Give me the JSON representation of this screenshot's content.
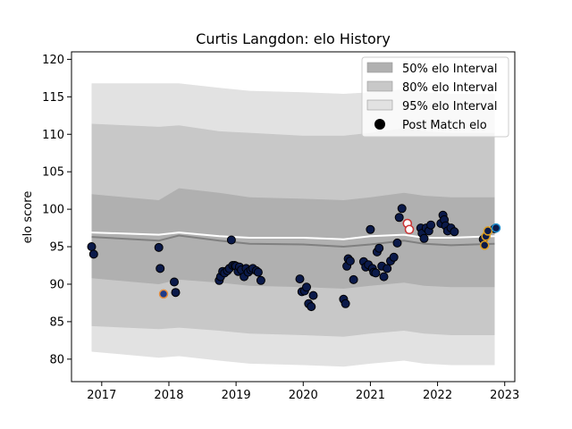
{
  "chart_data": {
    "type": "line",
    "title": "Curtis Langdon: elo History",
    "xlabel": "",
    "ylabel": "elo score",
    "xlim": [
      2016.55,
      2023.15
    ],
    "ylim": [
      77,
      121
    ],
    "x_ticks": [
      2017,
      2018,
      2019,
      2020,
      2021,
      2022,
      2023
    ],
    "x_tick_labels": [
      "2017",
      "2018",
      "2019",
      "2020",
      "2021",
      "2022",
      "2023"
    ],
    "y_ticks": [
      80,
      85,
      90,
      95,
      100,
      105,
      110,
      115,
      120
    ],
    "y_tick_labels": [
      "80",
      "85",
      "90",
      "95",
      "100",
      "105",
      "110",
      "115",
      "120"
    ],
    "grid": false,
    "legend_position": "top-right",
    "legend": [
      {
        "label": "50% elo Interval",
        "kind": "band",
        "color": "#b0b0b0"
      },
      {
        "label": "80% elo Interval",
        "kind": "band",
        "color": "#c8c8c8"
      },
      {
        "label": "95% elo Interval",
        "kind": "band",
        "color": "#e2e2e2"
      },
      {
        "label": "Post Match elo",
        "kind": "marker",
        "color": "#000000"
      }
    ],
    "colors": {
      "band50": "#b0b0b0",
      "band80": "#c8c8c8",
      "band95": "#e2e2e2",
      "mean_line": "#ffffff",
      "median_line": "#808080",
      "marker_fill": "#0b1a4a",
      "marker_edge": "#000000"
    },
    "bands": {
      "x": [
        2016.85,
        2017.85,
        2018.15,
        2018.75,
        2019.2,
        2020.0,
        2020.6,
        2021.0,
        2021.5,
        2021.8,
        2022.2,
        2022.85
      ],
      "p95_upper": [
        116.8,
        116.8,
        116.8,
        116.2,
        115.8,
        115.6,
        115.4,
        115.6,
        116.0,
        115.6,
        115.4,
        115.4
      ],
      "p80_upper": [
        111.4,
        111.0,
        111.2,
        110.4,
        110.2,
        109.8,
        109.8,
        110.2,
        110.8,
        110.4,
        110.2,
        110.2
      ],
      "p50_upper": [
        102.0,
        101.2,
        102.8,
        102.2,
        101.6,
        101.4,
        101.2,
        101.6,
        102.2,
        101.8,
        101.6,
        101.6
      ],
      "p50_lower": [
        90.8,
        90.0,
        90.6,
        90.2,
        89.8,
        89.6,
        89.4,
        89.8,
        90.2,
        89.8,
        89.6,
        89.6
      ],
      "p80_lower": [
        84.4,
        84.0,
        84.2,
        83.8,
        83.4,
        83.2,
        83.0,
        83.4,
        83.8,
        83.4,
        83.2,
        83.2
      ],
      "p95_lower": [
        81.0,
        80.2,
        80.4,
        79.8,
        79.4,
        79.2,
        79.0,
        79.4,
        79.8,
        79.4,
        79.2,
        79.2
      ],
      "mean": [
        96.9,
        96.6,
        96.9,
        96.4,
        96.2,
        96.2,
        96.0,
        96.4,
        96.6,
        96.2,
        96.2,
        96.4
      ],
      "median": [
        96.3,
        95.8,
        96.5,
        95.8,
        95.4,
        95.3,
        95.0,
        95.3,
        95.8,
        95.4,
        95.2,
        95.4
      ]
    },
    "series": [
      {
        "name": "Post Match elo",
        "x": [
          2016.85,
          2016.88,
          2017.85,
          2017.87,
          2017.92,
          2018.08,
          2018.1,
          2018.75,
          2018.77,
          2018.8,
          2018.83,
          2018.87,
          2018.9,
          2018.93,
          2018.95,
          2018.98,
          2019.0,
          2019.03,
          2019.05,
          2019.08,
          2019.12,
          2019.15,
          2019.18,
          2019.22,
          2019.25,
          2019.3,
          2019.33,
          2019.37,
          2019.95,
          2019.98,
          2020.02,
          2020.05,
          2020.08,
          2020.12,
          2020.15,
          2020.6,
          2020.63,
          2020.65,
          2020.67,
          2020.7,
          2020.75,
          2020.9,
          2020.93,
          2020.97,
          2021.0,
          2021.03,
          2021.05,
          2021.08,
          2021.1,
          2021.13,
          2021.17,
          2021.2,
          2021.25,
          2021.3,
          2021.35,
          2021.4,
          2021.43,
          2021.47,
          2021.55,
          2021.58,
          2021.75,
          2021.77,
          2021.8,
          2021.83,
          2021.87,
          2021.9,
          2022.05,
          2022.08,
          2022.1,
          2022.12,
          2022.15,
          2022.2,
          2022.25,
          2022.68,
          2022.7,
          2022.72,
          2022.75,
          2022.85,
          2022.87
        ],
        "y": [
          95.0,
          94.0,
          94.9,
          92.1,
          88.7,
          90.3,
          88.9,
          90.5,
          91.0,
          91.7,
          91.5,
          91.8,
          92.1,
          95.9,
          92.5,
          92.5,
          92.4,
          91.7,
          92.3,
          91.9,
          91.0,
          92.1,
          91.6,
          91.9,
          92.1,
          91.8,
          91.6,
          90.5,
          90.7,
          89.0,
          89.1,
          89.6,
          87.4,
          87.0,
          88.5,
          88.0,
          87.4,
          92.4,
          93.4,
          93.1,
          90.6,
          93.0,
          92.3,
          92.6,
          97.3,
          92.1,
          91.6,
          91.5,
          94.3,
          94.8,
          92.4,
          91.0,
          92.1,
          93.1,
          93.6,
          95.5,
          98.9,
          100.1,
          98.1,
          97.3,
          97.5,
          96.8,
          96.1,
          97.5,
          97.1,
          97.9,
          98.1,
          99.2,
          98.6,
          97.8,
          97.1,
          97.5,
          97.0,
          96.0,
          95.2,
          96.4,
          97.1,
          97.4,
          97.5
        ],
        "highlight_points": [
          {
            "x": 2017.92,
            "y": 88.7,
            "edge": "#e89040",
            "fill": "#1e3a8a"
          },
          {
            "x": 2021.55,
            "y": 98.1,
            "edge": "#cc3333",
            "fill": "#ffffff"
          },
          {
            "x": 2021.58,
            "y": 97.3,
            "edge": "#cc3333",
            "fill": "#ffffff"
          },
          {
            "x": 2022.7,
            "y": 95.2,
            "edge": "#e0a020",
            "fill": "#0b1a4a"
          },
          {
            "x": 2022.72,
            "y": 96.4,
            "edge": "#e0a020",
            "fill": "#0b1a4a"
          },
          {
            "x": 2022.75,
            "y": 97.1,
            "edge": "#e0a020",
            "fill": "#0b1a4a"
          },
          {
            "x": 2022.87,
            "y": 97.5,
            "edge": "#2090d0",
            "fill": "#0b1a4a"
          }
        ]
      }
    ]
  }
}
